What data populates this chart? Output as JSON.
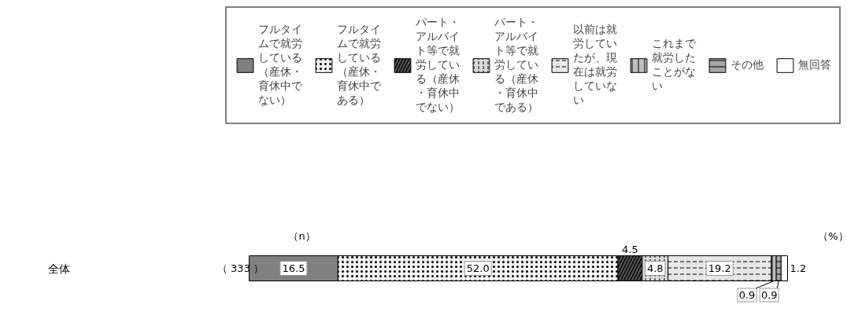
{
  "chart_data": {
    "type": "bar",
    "orientation": "horizontal",
    "stacked": true,
    "categories": [
      "全体"
    ],
    "series": [
      {
        "name": "フルタイムで就労している（産休・育休中でない）",
        "color": "#808080",
        "values": [
          16.5
        ],
        "value_labels": [
          "16.5"
        ]
      },
      {
        "name": "フルタイムで就労している（産休・育休中である）",
        "color": "#f2f2f2",
        "values": [
          52.0
        ],
        "value_labels": [
          "52.0"
        ]
      },
      {
        "name": "パート・アルバイト等で就労している（産休・育休中でない）",
        "color": "#595959",
        "values": [
          4.5
        ],
        "value_labels": [
          "4.5"
        ]
      },
      {
        "name": "パート・アルバイト等で就労している（産休・育休中である）",
        "color": "#d9d9d9",
        "values": [
          4.8
        ],
        "value_labels": [
          "4.8"
        ]
      },
      {
        "name": "以前は就労していたが、現在は就労していない",
        "color": "#e6e6e6",
        "values": [
          19.2
        ],
        "value_labels": [
          "19.2"
        ]
      },
      {
        "name": "これまで就労したことがない",
        "color": "#bfbfbf",
        "values": [
          0.9
        ],
        "value_labels": [
          "0.9"
        ]
      },
      {
        "name": "その他",
        "color": "#a6a6a6",
        "values": [
          0.9
        ],
        "value_labels": [
          "0.9"
        ]
      },
      {
        "name": "無回答",
        "color": "#ffffff",
        "values": [
          1.2
        ],
        "value_labels": [
          "1.2"
        ]
      }
    ],
    "legend": "top",
    "grid": false,
    "annotations": [
      "（n）",
      "（%）",
      "（ 333 ）"
    ]
  }
}
